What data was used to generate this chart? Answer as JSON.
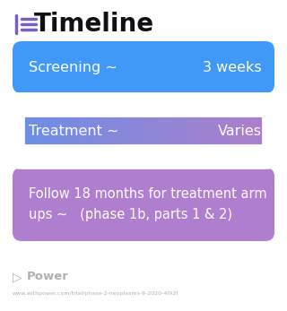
{
  "title": "Timeline",
  "title_icon_color": "#7c5cbf",
  "title_fontsize": 20,
  "title_fontweight": "bold",
  "background_color": "#ffffff",
  "rows": [
    {
      "left_text": "Screening ~",
      "right_text": "3 weeks",
      "single_color": "#4099f7",
      "gradient": false,
      "text_size": 11.5
    },
    {
      "left_text": "Treatment ~",
      "right_text": "Varies",
      "color_left": "#6a8fe8",
      "color_right": "#b07ec9",
      "gradient": true,
      "text_size": 11.5
    },
    {
      "left_text": "Follow 18 months for treatment arm\nups ~   (phase 1b, parts 1 & 2)",
      "single_color": "#b07ecf",
      "gradient": false,
      "text_size": 10.5
    }
  ],
  "footer_logo": "Power",
  "footer_url": "www.withpower.com/trial/phase-2-neoplasms-9-2020-4f92f",
  "footer_color": "#b0b0b0"
}
